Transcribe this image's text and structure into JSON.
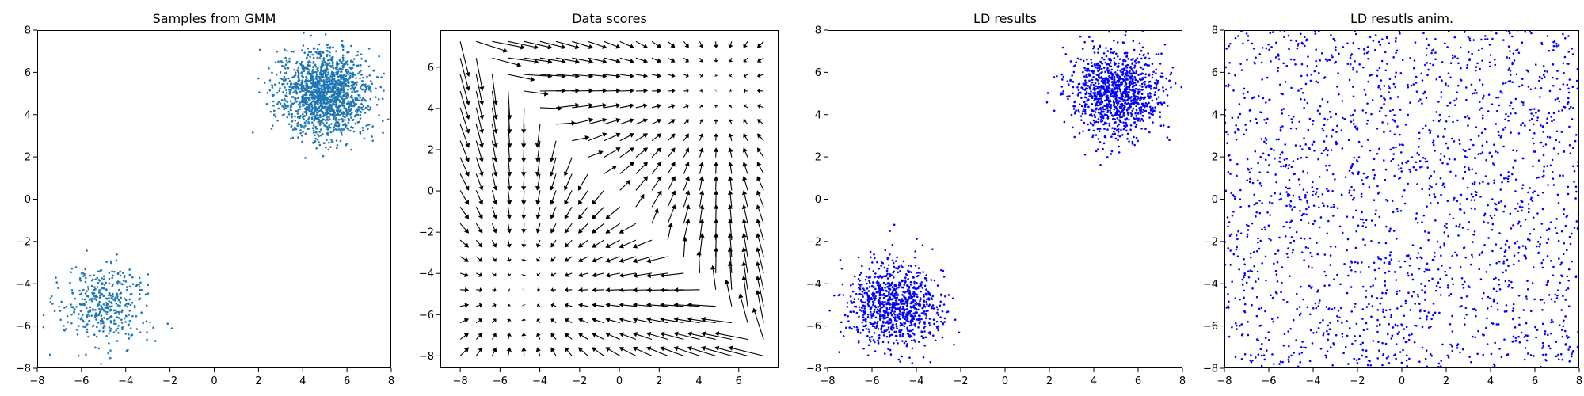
{
  "figure": {
    "background": "#ffffff"
  },
  "chart_data": [
    {
      "type": "scatter",
      "title": "Samples from GMM",
      "xlim": [
        -8,
        8
      ],
      "ylim": [
        -8,
        8
      ],
      "xticks": [
        -8,
        -6,
        -4,
        -2,
        0,
        2,
        4,
        6,
        8
      ],
      "yticks": [
        -8,
        -6,
        -4,
        -2,
        0,
        2,
        4,
        6,
        8
      ],
      "marker_color": "#1f77b4",
      "series": [
        {
          "cluster_center": [
            5,
            5
          ],
          "std": 1,
          "count": 1600
        },
        {
          "cluster_center": [
            -5,
            -5
          ],
          "std": 1,
          "count": 400
        }
      ]
    },
    {
      "type": "quiver",
      "title": "Data scores",
      "xlim": [
        -9,
        8
      ],
      "ylim": [
        -8.6,
        7.8
      ],
      "xticks": [
        -8,
        -6,
        -4,
        -2,
        0,
        2,
        4,
        6
      ],
      "yticks": [
        -8,
        -6,
        -4,
        -2,
        0,
        2,
        4,
        6
      ],
      "grid_x": [
        -8,
        7.25,
        20
      ],
      "grid_y": [
        -8,
        7.25,
        20
      ],
      "arrow_color": "#000000",
      "field": "gradient of log density of GMM with components at (5,5) w=0.8 and (-5,-5) w=0.2"
    },
    {
      "type": "scatter",
      "title": "LD results",
      "xlim": [
        -8,
        8
      ],
      "ylim": [
        -8,
        8
      ],
      "xticks": [
        -8,
        -6,
        -4,
        -2,
        0,
        2,
        4,
        6,
        8
      ],
      "yticks": [
        -8,
        -6,
        -4,
        -2,
        0,
        2,
        4,
        6,
        8
      ],
      "marker_color": "#0000ff",
      "series": [
        {
          "cluster_center": [
            5,
            5
          ],
          "std": 1,
          "count": 1100
        },
        {
          "cluster_center": [
            -5,
            -5
          ],
          "std": 1,
          "count": 900
        }
      ]
    },
    {
      "type": "scatter",
      "title": "LD resutls anim.",
      "xlim": [
        -8,
        8
      ],
      "ylim": [
        -8,
        8
      ],
      "xticks": [
        -8,
        -6,
        -4,
        -2,
        0,
        2,
        4,
        6,
        8
      ],
      "yticks": [
        -8,
        -6,
        -4,
        -2,
        0,
        2,
        4,
        6,
        8
      ],
      "marker_color": "#0000ff",
      "series": [
        {
          "distribution": "uniform",
          "x_range": [
            -8,
            8
          ],
          "y_range": [
            -8,
            8
          ],
          "count": 2000
        }
      ]
    }
  ]
}
